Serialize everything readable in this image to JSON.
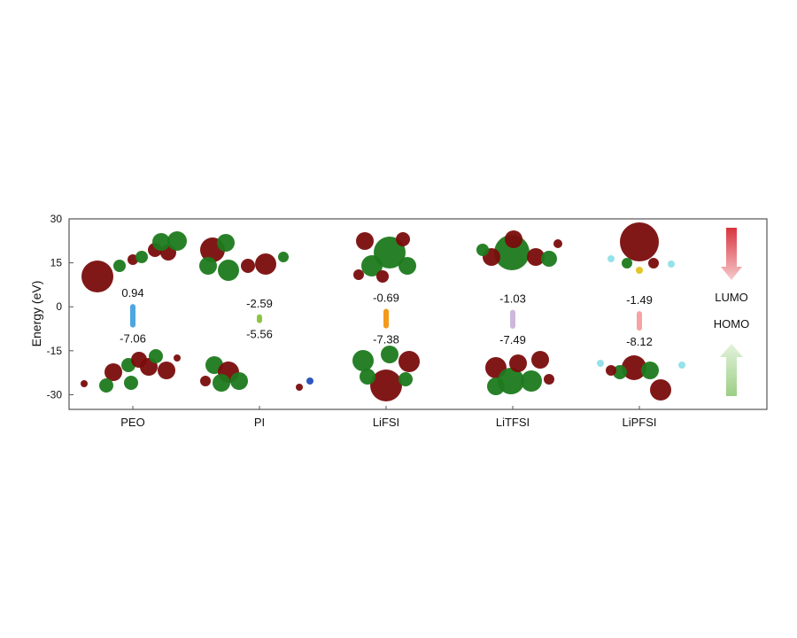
{
  "chart_data": {
    "type": "energy-level",
    "ylabel": "Energy (eV)",
    "ylim": [
      -35,
      30
    ],
    "yticks": [
      30,
      15,
      0,
      -15,
      -30
    ],
    "categories": [
      "PEO",
      "PI",
      "LiFSI",
      "LiTFSI",
      "LiPFSI"
    ],
    "series": [
      {
        "name": "LUMO",
        "values": [
          0.94,
          -2.59,
          -0.69,
          -1.03,
          -1.49
        ]
      },
      {
        "name": "HOMO",
        "values": [
          -7.06,
          -5.56,
          -7.38,
          -7.49,
          -8.12
        ]
      }
    ],
    "bar_colors": [
      "#4ea6e0",
      "#8cc63f",
      "#f39a1e",
      "#cdb8dc",
      "#f5a3a3"
    ],
    "grid": false
  },
  "legend": {
    "lumo_label": "LUMO",
    "homo_label": "HOMO",
    "lumo_arrow_color": "#d9353f",
    "homo_arrow_color": "#9ccf85"
  },
  "orbital_colors": {
    "positive": "#7a0c0c",
    "negative": "#1c7a1c"
  }
}
